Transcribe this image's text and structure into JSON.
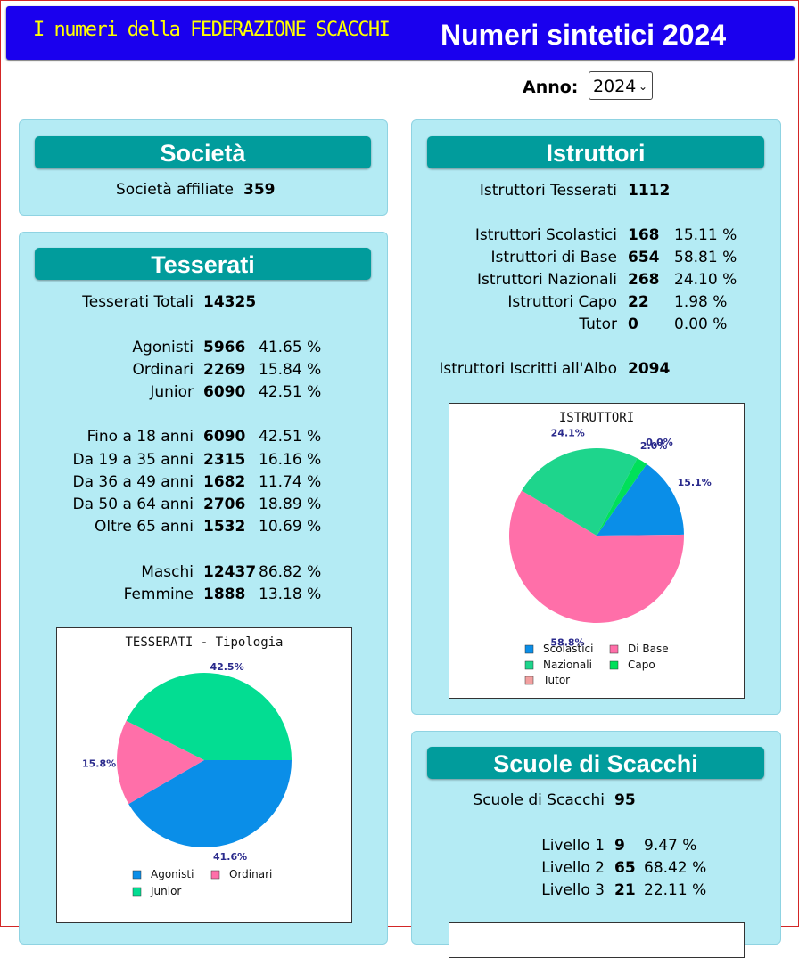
{
  "header": {
    "left_title": "I numeri della FEDERAZIONE SCACCHI",
    "right_title": "Numeri sintetici  2024"
  },
  "anno": {
    "label": "Anno:",
    "selected": "2024"
  },
  "societa": {
    "title": "Società",
    "rows": [
      {
        "label": "Società affiliate",
        "value": "359"
      }
    ]
  },
  "tesserati": {
    "title": "Tesserati",
    "totale": {
      "label": "Tesserati Totali",
      "value": "14325"
    },
    "tipologia": [
      {
        "label": "Agonisti",
        "value": "5966",
        "pct": "41.65 %"
      },
      {
        "label": "Ordinari",
        "value": "2269",
        "pct": "15.84 %"
      },
      {
        "label": "Junior",
        "value": "6090",
        "pct": "42.51 %"
      }
    ],
    "eta": [
      {
        "label": "Fino a 18 anni",
        "value": "6090",
        "pct": "42.51 %"
      },
      {
        "label": "Da 19 a 35 anni",
        "value": "2315",
        "pct": "16.16 %"
      },
      {
        "label": "Da 36 a 49 anni",
        "value": "1682",
        "pct": "11.74 %"
      },
      {
        "label": "Da 50 a 64 anni",
        "value": "2706",
        "pct": "18.89 %"
      },
      {
        "label": "Oltre 65 anni",
        "value": "1532",
        "pct": "10.69 %"
      }
    ],
    "sesso": [
      {
        "label": "Maschi",
        "value": "12437",
        "pct": "86.82 %"
      },
      {
        "label": "Femmine",
        "value": "1888",
        "pct": "13.18 %"
      }
    ]
  },
  "istruttori": {
    "title": "Istruttori",
    "totale": {
      "label": "Istruttori Tesserati",
      "value": "1112"
    },
    "categorie": [
      {
        "label": "Istruttori Scolastici",
        "value": "168",
        "pct": "15.11 %"
      },
      {
        "label": "Istruttori di Base",
        "value": "654",
        "pct": "58.81 %"
      },
      {
        "label": "Istruttori Nazionali",
        "value": "268",
        "pct": "24.10 %"
      },
      {
        "label": "Istruttori Capo",
        "value": "22",
        "pct": "1.98 %"
      },
      {
        "label": "Tutor",
        "value": "0",
        "pct": "0.00 %"
      }
    ],
    "albo": {
      "label": "Istruttori Iscritti all'Albo",
      "value": "2094"
    }
  },
  "scuole": {
    "title": "Scuole di Scacchi",
    "totale": {
      "label": "Scuole di Scacchi",
      "value": "95"
    },
    "livelli": [
      {
        "label": "Livello 1",
        "value": "9",
        "pct": "9.47 %"
      },
      {
        "label": "Livello 2",
        "value": "65",
        "pct": "68.42 %"
      },
      {
        "label": "Livello 3",
        "value": "21",
        "pct": "22.11 %"
      }
    ]
  },
  "chart_data": [
    {
      "type": "pie",
      "title": "TESSERATI - Tipologia",
      "categories": [
        "Agonisti",
        "Ordinari",
        "Junior"
      ],
      "values": [
        41.6,
        15.8,
        42.5
      ],
      "data_labels": [
        "41.6%",
        "15.8%",
        "42.5%"
      ],
      "colors": [
        "#0a8ee8",
        "#ff6fa9",
        "#03dd92"
      ],
      "legend": "bottom"
    },
    {
      "type": "pie",
      "title": "ISTRUTTORI",
      "categories": [
        "Scolastici",
        "Di Base",
        "Nazionali",
        "Capo",
        "Tutor"
      ],
      "values": [
        15.1,
        58.8,
        24.1,
        2.0,
        0.0
      ],
      "data_labels": [
        "15.1%",
        "58.8%",
        "24.1%",
        "2.0%",
        "0.0%"
      ],
      "colors": [
        "#0a8ee8",
        "#ff6fa9",
        "#1ed58c",
        "#00e05a",
        "#f2a0a0"
      ],
      "legend": "bottom"
    }
  ]
}
